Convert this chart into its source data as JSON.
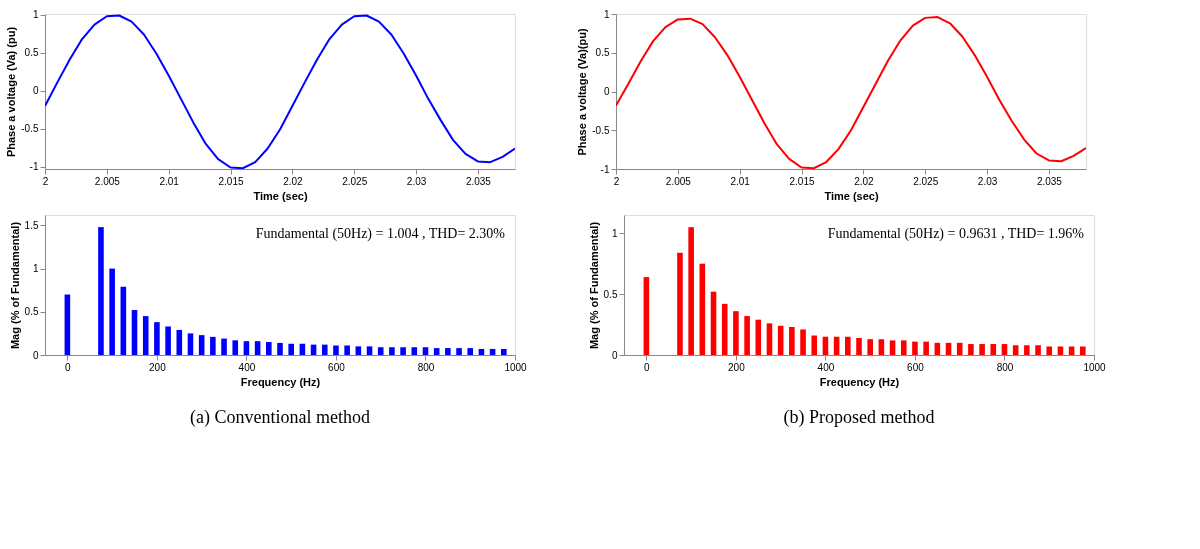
{
  "chart_data": [
    {
      "type": "line",
      "xlabel": "Time (sec)",
      "ylabel": "Phase a voltage (Va) (pu)",
      "xlim": [
        2,
        2.038
      ],
      "ylim": [
        -1.03,
        1.01
      ],
      "xticks": [
        2,
        2.005,
        2.01,
        2.015,
        2.02,
        2.025,
        2.03,
        2.035
      ],
      "yticks": [
        -1,
        -0.5,
        0,
        0.5,
        1
      ],
      "grid": false,
      "x": [
        2,
        2.001,
        2.002,
        2.003,
        2.004,
        2.005,
        2.006,
        2.007,
        2.008,
        2.009,
        2.01,
        2.011,
        2.012,
        2.013,
        2.014,
        2.015,
        2.016,
        2.017,
        2.018,
        2.019,
        2.02,
        2.021,
        2.022,
        2.023,
        2.024,
        2.025,
        2.026,
        2.027,
        2.028,
        2.029,
        2.03,
        2.031,
        2.032,
        2.033,
        2.034,
        2.035,
        2.036,
        2.037,
        2.038
      ],
      "series": [
        {
          "color": "#0000ff",
          "values": [
            -0.2,
            0.11,
            0.41,
            0.68,
            0.87,
            0.98,
            0.99,
            0.91,
            0.74,
            0.49,
            0.2,
            -0.11,
            -0.42,
            -0.7,
            -0.9,
            -1.01,
            -1.02,
            -0.94,
            -0.76,
            -0.51,
            -0.2,
            0.11,
            0.41,
            0.68,
            0.87,
            0.98,
            0.99,
            0.91,
            0.74,
            0.49,
            0.2,
            -0.11,
            -0.39,
            -0.65,
            -0.83,
            -0.93,
            -0.94,
            -0.87,
            -0.76
          ]
        }
      ]
    },
    {
      "type": "line",
      "xlabel": "Time (sec)",
      "ylabel": "Phase a voltage (Va)(pu)",
      "xlim": [
        2,
        2.038
      ],
      "ylim": [
        -1,
        1
      ],
      "xticks": [
        2,
        2.005,
        2.01,
        2.015,
        2.02,
        2.025,
        2.03,
        2.035
      ],
      "yticks": [
        -1,
        -0.5,
        0,
        0.5,
        1
      ],
      "grid": false,
      "x": [
        2,
        2.001,
        2.002,
        2.003,
        2.004,
        2.005,
        2.006,
        2.007,
        2.008,
        2.009,
        2.01,
        2.011,
        2.012,
        2.013,
        2.014,
        2.015,
        2.016,
        2.017,
        2.018,
        2.019,
        2.02,
        2.021,
        2.022,
        2.023,
        2.024,
        2.025,
        2.026,
        2.027,
        2.028,
        2.029,
        2.03,
        2.031,
        2.032,
        2.033,
        2.034,
        2.035,
        2.036,
        2.037,
        2.038
      ],
      "series": [
        {
          "color": "#ff0000",
          "values": [
            -0.18,
            0.1,
            0.39,
            0.65,
            0.83,
            0.93,
            0.94,
            0.87,
            0.7,
            0.47,
            0.19,
            -0.11,
            -0.41,
            -0.68,
            -0.87,
            -0.98,
            -0.99,
            -0.91,
            -0.74,
            -0.5,
            -0.2,
            0.1,
            0.4,
            0.66,
            0.85,
            0.95,
            0.96,
            0.88,
            0.71,
            0.47,
            0.19,
            -0.11,
            -0.38,
            -0.62,
            -0.8,
            -0.89,
            -0.9,
            -0.83,
            -0.73
          ]
        }
      ]
    },
    {
      "type": "bar",
      "xlabel": "Frequency (Hz)",
      "ylabel": "Mag (% of Fundamental)",
      "xlim": [
        -50,
        1000
      ],
      "ylim": [
        0,
        1.62
      ],
      "xticks": [
        0,
        200,
        400,
        600,
        800,
        1000
      ],
      "yticks": [
        0,
        0.5,
        1,
        1.5
      ],
      "grid": false,
      "annotations": [
        "Fundamental (50Hz) = 1.004 , THD= 2.30%",
        "(a) Conventional method"
      ],
      "x": [
        0,
        25,
        50,
        75,
        100,
        125,
        150,
        175,
        200,
        225,
        250,
        275,
        300,
        325,
        350,
        375,
        400,
        425,
        450,
        475,
        500,
        525,
        550,
        575,
        600,
        625,
        650,
        675,
        700,
        725,
        750,
        775,
        800,
        825,
        850,
        875,
        900,
        925,
        950,
        975
      ],
      "series": [
        {
          "color": "#0000ff",
          "values": [
            0.7,
            null,
            null,
            1.48,
            1.0,
            0.79,
            0.52,
            0.45,
            0.38,
            0.33,
            0.29,
            0.25,
            0.23,
            0.21,
            0.19,
            0.17,
            0.16,
            0.16,
            0.15,
            0.14,
            0.13,
            0.13,
            0.12,
            0.12,
            0.11,
            0.11,
            0.1,
            0.1,
            0.09,
            0.09,
            0.09,
            0.09,
            0.09,
            0.08,
            0.08,
            0.08,
            0.08,
            0.07,
            0.07,
            0.07
          ]
        }
      ]
    },
    {
      "type": "bar",
      "xlabel": "Frequency (Hz)",
      "ylabel": "Mag (% of Fundamental)",
      "xlim": [
        -50,
        1000
      ],
      "ylim": [
        0,
        1.15
      ],
      "xticks": [
        0,
        200,
        400,
        600,
        800,
        1000
      ],
      "yticks": [
        0,
        0.5,
        1
      ],
      "grid": false,
      "annotations": [
        "Fundamental (50Hz) = 0.9631 , THD= 1.96%",
        "(b) Proposed method"
      ],
      "x": [
        0,
        25,
        50,
        75,
        100,
        125,
        150,
        175,
        200,
        225,
        250,
        275,
        300,
        325,
        350,
        375,
        400,
        425,
        450,
        475,
        500,
        525,
        550,
        575,
        600,
        625,
        650,
        675,
        700,
        725,
        750,
        775,
        800,
        825,
        850,
        875,
        900,
        925,
        950,
        975
      ],
      "series": [
        {
          "color": "#ff0000",
          "values": [
            0.64,
            null,
            null,
            0.84,
            1.05,
            0.75,
            0.52,
            0.42,
            0.36,
            0.32,
            0.29,
            0.26,
            0.24,
            0.23,
            0.21,
            0.16,
            0.15,
            0.15,
            0.15,
            0.14,
            0.13,
            0.13,
            0.12,
            0.12,
            0.11,
            0.11,
            0.1,
            0.1,
            0.1,
            0.09,
            0.09,
            0.09,
            0.09,
            0.08,
            0.08,
            0.08,
            0.07,
            0.07,
            0.07,
            0.07
          ]
        }
      ]
    }
  ]
}
